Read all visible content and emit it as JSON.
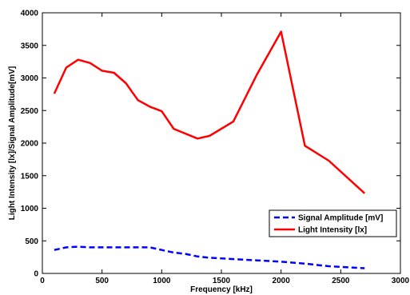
{
  "chart_data": {
    "type": "line",
    "title": "",
    "xlabel": "Frequency [kHz]",
    "ylabel": "Light Intensity [lx]/Signal Amplitude[mV]",
    "xlim": [
      0,
      3000
    ],
    "ylim": [
      0,
      4000
    ],
    "xticks": [
      0,
      500,
      1000,
      1500,
      2000,
      2500,
      3000
    ],
    "yticks": [
      0,
      500,
      1000,
      1500,
      2000,
      2500,
      3000,
      3500,
      4000
    ],
    "grid": false,
    "legend_position": "lower-right",
    "series": [
      {
        "name": "Signal Amplitude [mV]",
        "color": "#0000ff",
        "style": "dashed",
        "x": [
          100,
          200,
          300,
          400,
          500,
          600,
          700,
          800,
          900,
          1000,
          1100,
          1200,
          1300,
          1400,
          1600,
          1800,
          2000,
          2200,
          2400,
          2700
        ],
        "y": [
          360,
          400,
          410,
          400,
          400,
          400,
          400,
          400,
          400,
          360,
          320,
          300,
          260,
          240,
          220,
          200,
          180,
          150,
          110,
          80
        ]
      },
      {
        "name": "Light Intensity [lx]",
        "color": "#ff0000",
        "style": "solid",
        "x": [
          100,
          200,
          300,
          400,
          500,
          600,
          700,
          800,
          900,
          1000,
          1100,
          1300,
          1400,
          1600,
          1800,
          2000,
          2200,
          2400,
          2700
        ],
        "y": [
          2760,
          3160,
          3280,
          3230,
          3110,
          3080,
          2920,
          2660,
          2560,
          2490,
          2220,
          2070,
          2110,
          2330,
          3060,
          3710,
          1960,
          1730,
          1230
        ]
      }
    ]
  }
}
